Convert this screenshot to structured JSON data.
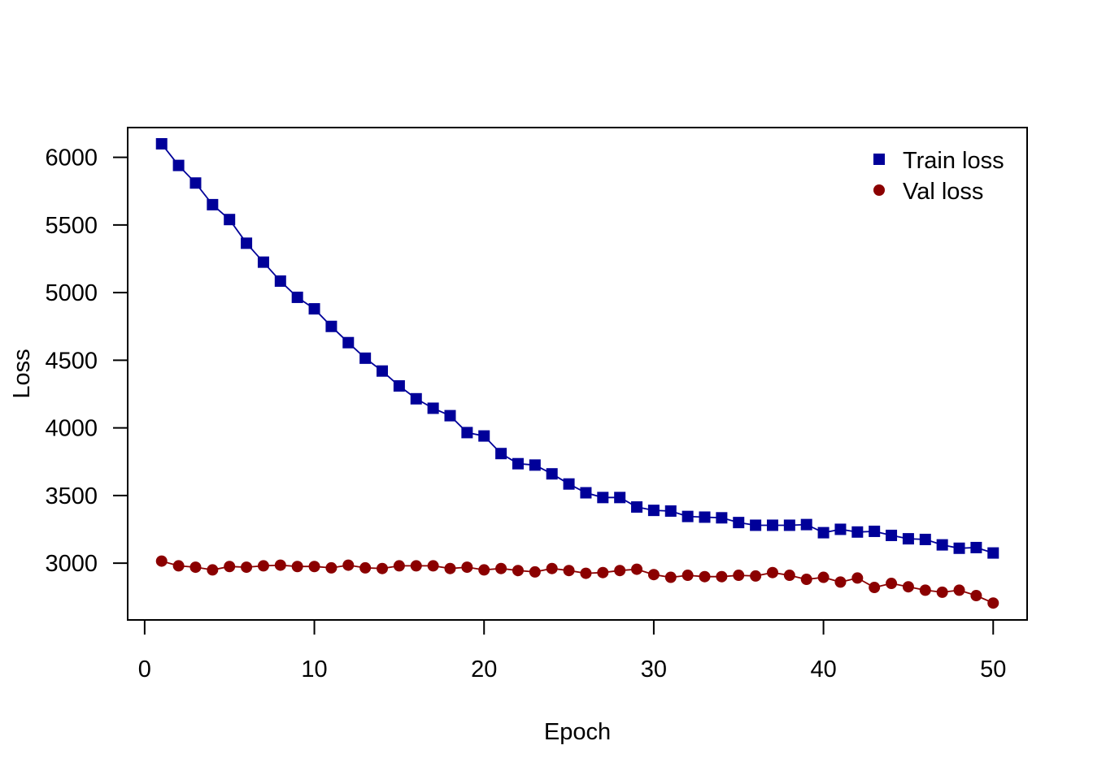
{
  "colors": {
    "train": "#000099",
    "val": "#8b0000",
    "frame": "#000000",
    "background": "#ffffff"
  },
  "chart_data": {
    "type": "line",
    "title": "",
    "xlabel": "Epoch",
    "ylabel": "Loss",
    "xlim": [
      -1,
      52
    ],
    "ylim": [
      2580,
      6220
    ],
    "xticks": [
      0,
      10,
      20,
      30,
      40,
      50
    ],
    "yticks": [
      3000,
      3500,
      4000,
      4500,
      5000,
      5500,
      6000
    ],
    "grid": false,
    "legend_position": "top-right",
    "x": [
      1,
      2,
      3,
      4,
      5,
      6,
      7,
      8,
      9,
      10,
      11,
      12,
      13,
      14,
      15,
      16,
      17,
      18,
      19,
      20,
      21,
      22,
      23,
      24,
      25,
      26,
      27,
      28,
      29,
      30,
      31,
      32,
      33,
      34,
      35,
      36,
      37,
      38,
      39,
      40,
      41,
      42,
      43,
      44,
      45,
      46,
      47,
      48,
      49,
      50
    ],
    "series": [
      {
        "name": "Train loss",
        "marker": "square",
        "color": "#000099",
        "values": [
          6100,
          5940,
          5810,
          5650,
          5540,
          5365,
          5225,
          5085,
          4965,
          4880,
          4750,
          4630,
          4515,
          4420,
          4310,
          4215,
          4145,
          4090,
          3965,
          3940,
          3810,
          3735,
          3725,
          3660,
          3585,
          3520,
          3485,
          3485,
          3415,
          3390,
          3385,
          3345,
          3340,
          3335,
          3300,
          3280,
          3280,
          3280,
          3285,
          3225,
          3250,
          3230,
          3235,
          3205,
          3180,
          3175,
          3135,
          3110,
          3115,
          3075
        ]
      },
      {
        "name": "Val loss",
        "marker": "circle",
        "color": "#8b0000",
        "values": [
          3015,
          2980,
          2970,
          2950,
          2975,
          2970,
          2980,
          2985,
          2975,
          2975,
          2965,
          2985,
          2965,
          2960,
          2980,
          2980,
          2980,
          2960,
          2970,
          2950,
          2960,
          2945,
          2935,
          2960,
          2945,
          2925,
          2930,
          2945,
          2955,
          2915,
          2895,
          2910,
          2900,
          2900,
          2910,
          2905,
          2930,
          2910,
          2880,
          2895,
          2860,
          2890,
          2820,
          2850,
          2825,
          2800,
          2785,
          2800,
          2760,
          2705
        ]
      }
    ]
  }
}
